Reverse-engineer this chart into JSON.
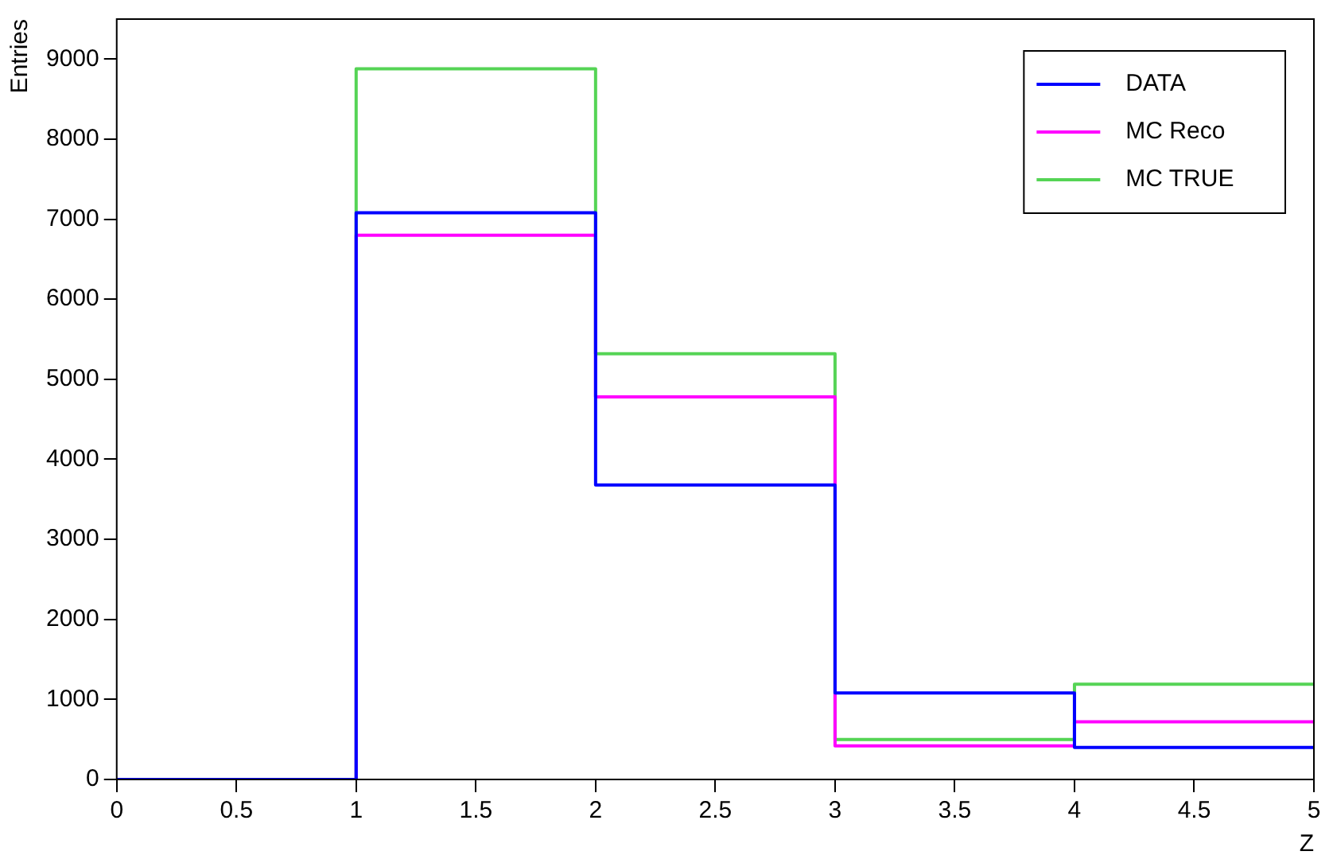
{
  "chart_data": {
    "type": "histogram",
    "xlabel": "Z",
    "ylabel": "Entries",
    "bins": [
      0,
      1,
      2,
      3,
      4,
      5
    ],
    "series": [
      {
        "name": "DATA",
        "color": "#0000ff",
        "values": [
          0,
          7080,
          3680,
          1080,
          400
        ]
      },
      {
        "name": "MC Reco",
        "color": "#ff00ff",
        "values": [
          0,
          6800,
          4780,
          420,
          720
        ]
      },
      {
        "name": "MC TRUE",
        "color": "#55d455",
        "values": [
          0,
          8880,
          5320,
          500,
          1190
        ]
      }
    ],
    "xlim": [
      0,
      5
    ],
    "xticks": [
      0,
      0.5,
      1,
      1.5,
      2,
      2.5,
      3,
      3.5,
      4,
      4.5,
      5
    ],
    "ylim": [
      0,
      9500
    ],
    "yticks": [
      0,
      1000,
      2000,
      3000,
      4000,
      5000,
      6000,
      7000,
      8000,
      9000
    ],
    "grid": false,
    "legend": "top right"
  }
}
